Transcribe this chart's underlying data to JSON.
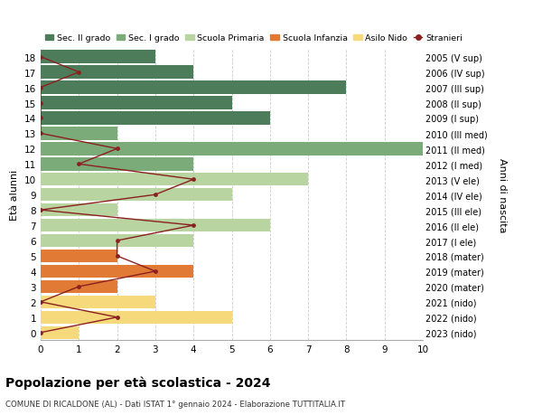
{
  "ages": [
    18,
    17,
    16,
    15,
    14,
    13,
    12,
    11,
    10,
    9,
    8,
    7,
    6,
    5,
    4,
    3,
    2,
    1,
    0
  ],
  "right_labels": [
    "2005 (V sup)",
    "2006 (IV sup)",
    "2007 (III sup)",
    "2008 (II sup)",
    "2009 (I sup)",
    "2010 (III med)",
    "2011 (II med)",
    "2012 (I med)",
    "2013 (V ele)",
    "2014 (IV ele)",
    "2015 (III ele)",
    "2016 (II ele)",
    "2017 (I ele)",
    "2018 (mater)",
    "2019 (mater)",
    "2020 (mater)",
    "2021 (nido)",
    "2022 (nido)",
    "2023 (nido)"
  ],
  "bar_values": [
    3,
    4,
    8,
    5,
    6,
    2,
    10,
    4,
    7,
    5,
    2,
    6,
    4,
    2,
    4,
    2,
    3,
    5,
    1
  ],
  "bar_colors": [
    "#4d7c5a",
    "#4d7c5a",
    "#4d7c5a",
    "#4d7c5a",
    "#4d7c5a",
    "#7aab78",
    "#7aab78",
    "#7aab78",
    "#b8d4a0",
    "#b8d4a0",
    "#b8d4a0",
    "#b8d4a0",
    "#b8d4a0",
    "#e07a35",
    "#e07a35",
    "#e07a35",
    "#f5d97a",
    "#f5d97a",
    "#f5d97a"
  ],
  "stranieri_values": [
    0,
    1,
    0,
    0,
    0,
    0,
    2,
    1,
    4,
    3,
    0,
    4,
    2,
    2,
    3,
    1,
    0,
    2,
    0
  ],
  "title": "Popolazione per età scolastica - 2024",
  "subtitle": "COMUNE DI RICALDONE (AL) - Dati ISTAT 1° gennaio 2024 - Elaborazione TUTTITALIA.IT",
  "ylabel_left": "Età alunni",
  "ylabel_right": "Anni di nascita",
  "xlim": [
    0,
    10
  ],
  "ylim": [
    -0.5,
    18.5
  ],
  "color_sec2": "#4d7c5a",
  "color_sec1": "#7aab78",
  "color_prim": "#b8d4a0",
  "color_inf": "#e07a35",
  "color_nido": "#f5d97a",
  "color_stranieri": "#8b2020",
  "legend_labels": [
    "Sec. II grado",
    "Sec. I grado",
    "Scuola Primaria",
    "Scuola Infanzia",
    "Asilo Nido",
    "Stranieri"
  ],
  "background_color": "#ffffff",
  "grid_color": "#cccccc"
}
